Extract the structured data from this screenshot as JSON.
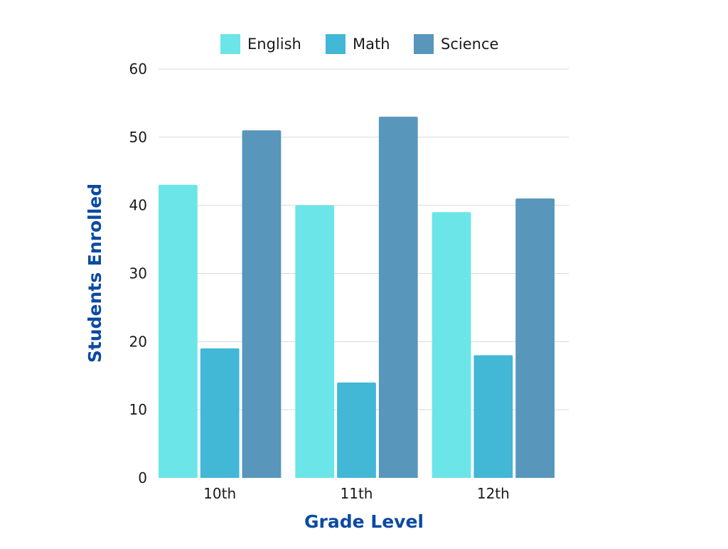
{
  "chart_data": {
    "type": "bar",
    "title": "",
    "xlabel": "Grade Level",
    "ylabel": "Students Enrolled",
    "categories": [
      "10th",
      "11th",
      "12th"
    ],
    "series": [
      {
        "name": "English",
        "values": [
          43,
          40,
          39
        ],
        "color": "#6be5e8"
      },
      {
        "name": "Math",
        "values": [
          19,
          14,
          18
        ],
        "color": "#42b7d6"
      },
      {
        "name": "Science",
        "values": [
          51,
          53,
          41
        ],
        "color": "#5896bb"
      }
    ],
    "ylim": [
      0,
      60
    ],
    "yticks": [
      0,
      10,
      20,
      30,
      40,
      50,
      60
    ],
    "grid": true,
    "legend_position": "top"
  }
}
